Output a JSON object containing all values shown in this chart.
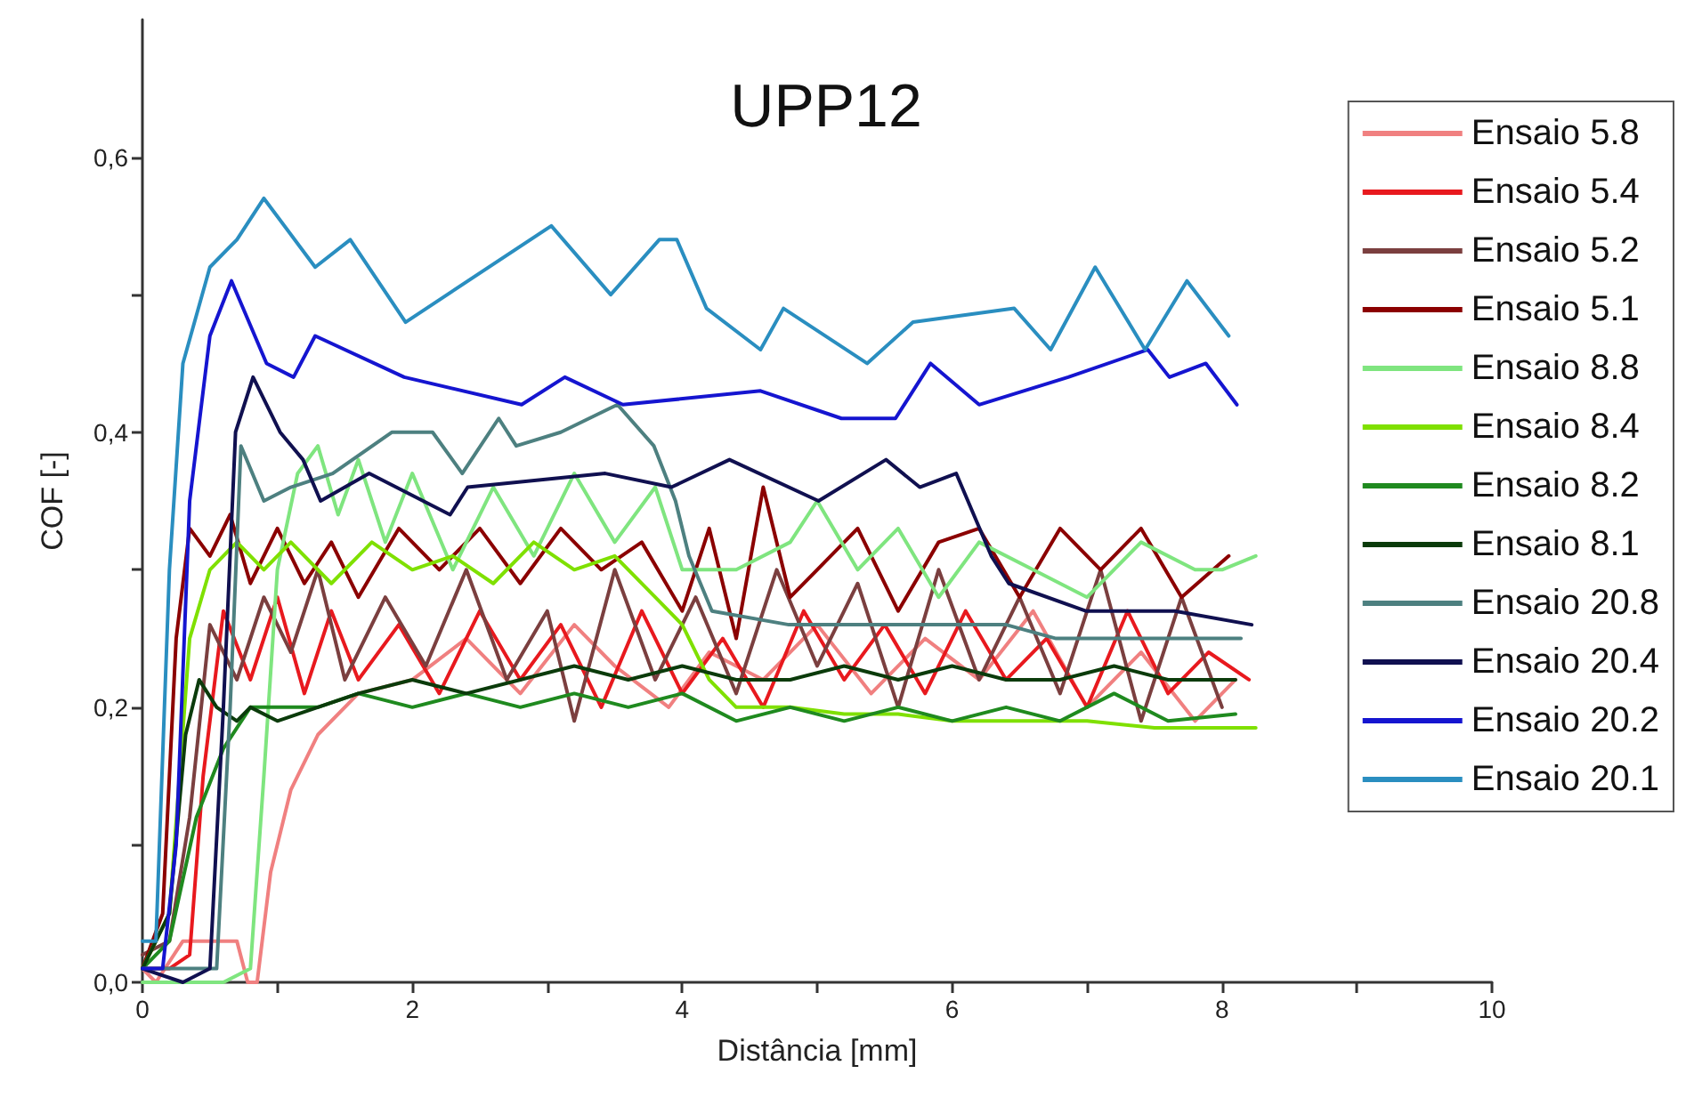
{
  "chart_data": {
    "type": "line",
    "title": "UPP12",
    "xlabel": "Distância [mm]",
    "ylabel": "COF [-]",
    "xlim": [
      0,
      10
    ],
    "xticks": [
      0,
      {
        "value": 1,
        "label": null
      },
      2,
      {
        "value": 3,
        "label": null
      },
      4,
      {
        "value": 5,
        "label": null
      },
      6,
      {
        "value": 7,
        "label": null
      },
      8,
      {
        "value": 9,
        "label": null
      },
      10
    ],
    "ylim": [
      0,
      0.7
    ],
    "yticks": [
      {
        "value": 0,
        "label": "0,0"
      },
      {
        "value": 0.1,
        "label": null
      },
      {
        "value": 0.2,
        "label": "0,2"
      },
      {
        "value": 0.3,
        "label": null
      },
      {
        "value": 0.4,
        "label": "0,4"
      },
      {
        "value": 0.5,
        "label": null
      },
      {
        "value": 0.6,
        "label": "0,6"
      }
    ],
    "grid": false,
    "legend": "top right",
    "marker": "none",
    "line_style": "solid",
    "series": [
      {
        "name": "Ensaio 5.8",
        "color": "#f08080",
        "x": [
          0,
          0.1,
          0.3,
          0.5,
          0.7,
          0.78,
          0.85,
          0.95,
          1.1,
          1.3,
          1.6,
          2.0,
          2.4,
          2.8,
          3.2,
          3.5,
          3.9,
          4.2,
          4.6,
          5.0,
          5.4,
          5.8,
          6.2,
          6.6,
          7.0,
          7.4,
          7.8,
          8.1
        ],
        "values": [
          0.01,
          0.0,
          0.03,
          0.03,
          0.03,
          0.0,
          0.0,
          0.08,
          0.14,
          0.18,
          0.21,
          0.22,
          0.25,
          0.21,
          0.26,
          0.23,
          0.2,
          0.24,
          0.22,
          0.26,
          0.21,
          0.25,
          0.22,
          0.27,
          0.2,
          0.24,
          0.19,
          0.22
        ]
      },
      {
        "name": "Ensaio 5.4",
        "color": "#e8191e",
        "x": [
          0,
          0.2,
          0.35,
          0.45,
          0.6,
          0.8,
          1.0,
          1.2,
          1.4,
          1.6,
          1.9,
          2.2,
          2.5,
          2.8,
          3.1,
          3.4,
          3.7,
          4.0,
          4.3,
          4.6,
          4.9,
          5.2,
          5.5,
          5.8,
          6.1,
          6.4,
          6.7,
          7.0,
          7.3,
          7.6,
          7.9,
          8.2
        ],
        "values": [
          0.01,
          0.01,
          0.02,
          0.15,
          0.27,
          0.22,
          0.28,
          0.21,
          0.27,
          0.22,
          0.26,
          0.21,
          0.27,
          0.22,
          0.26,
          0.2,
          0.27,
          0.21,
          0.25,
          0.2,
          0.27,
          0.22,
          0.26,
          0.21,
          0.27,
          0.22,
          0.25,
          0.2,
          0.27,
          0.21,
          0.24,
          0.22
        ]
      },
      {
        "name": "Ensaio 5.2",
        "color": "#7b3f3f",
        "x": [
          0,
          0.2,
          0.35,
          0.5,
          0.7,
          0.9,
          1.1,
          1.3,
          1.5,
          1.8,
          2.1,
          2.4,
          2.7,
          3.0,
          3.2,
          3.5,
          3.8,
          4.1,
          4.4,
          4.7,
          5.0,
          5.3,
          5.6,
          5.9,
          6.2,
          6.5,
          6.8,
          7.1,
          7.4,
          7.7,
          8.0
        ],
        "values": [
          0.02,
          0.03,
          0.12,
          0.26,
          0.22,
          0.28,
          0.24,
          0.3,
          0.22,
          0.28,
          0.23,
          0.3,
          0.22,
          0.27,
          0.19,
          0.3,
          0.22,
          0.28,
          0.21,
          0.3,
          0.23,
          0.29,
          0.2,
          0.3,
          0.22,
          0.28,
          0.21,
          0.3,
          0.19,
          0.28,
          0.2
        ]
      },
      {
        "name": "Ensaio 5.1",
        "color": "#8b0000",
        "x": [
          0,
          0.15,
          0.25,
          0.35,
          0.5,
          0.65,
          0.8,
          1.0,
          1.2,
          1.4,
          1.6,
          1.9,
          2.2,
          2.5,
          2.8,
          3.1,
          3.4,
          3.7,
          4.0,
          4.2,
          4.4,
          4.6,
          4.8,
          5.0,
          5.3,
          5.6,
          5.9,
          6.2,
          6.5,
          6.8,
          7.1,
          7.4,
          7.7,
          8.05
        ],
        "values": [
          0.01,
          0.05,
          0.25,
          0.33,
          0.31,
          0.34,
          0.29,
          0.33,
          0.29,
          0.32,
          0.28,
          0.33,
          0.3,
          0.33,
          0.29,
          0.33,
          0.3,
          0.32,
          0.27,
          0.33,
          0.25,
          0.36,
          0.28,
          0.3,
          0.33,
          0.27,
          0.32,
          0.33,
          0.28,
          0.33,
          0.3,
          0.33,
          0.28,
          0.31
        ]
      },
      {
        "name": "Ensaio 8.8",
        "color": "#7fe57f",
        "x": [
          0,
          0.3,
          0.6,
          0.8,
          0.9,
          1.0,
          1.15,
          1.3,
          1.45,
          1.6,
          1.8,
          2.0,
          2.3,
          2.6,
          2.9,
          3.2,
          3.5,
          3.8,
          4.0,
          4.4,
          4.8,
          5.0,
          5.3,
          5.6,
          5.9,
          6.2,
          6.6,
          7.0,
          7.4,
          7.8,
          8.0,
          8.25
        ],
        "values": [
          0,
          0,
          0,
          0.01,
          0.15,
          0.3,
          0.37,
          0.39,
          0.34,
          0.38,
          0.32,
          0.37,
          0.3,
          0.36,
          0.31,
          0.37,
          0.32,
          0.36,
          0.3,
          0.3,
          0.32,
          0.35,
          0.3,
          0.33,
          0.28,
          0.32,
          0.3,
          0.28,
          0.32,
          0.3,
          0.3,
          0.31
        ]
      },
      {
        "name": "Ensaio 8.4",
        "color": "#7fe000",
        "x": [
          0,
          0.2,
          0.35,
          0.5,
          0.7,
          0.9,
          1.1,
          1.4,
          1.7,
          2.0,
          2.3,
          2.6,
          2.9,
          3.2,
          3.5,
          3.8,
          4.0,
          4.2,
          4.4,
          4.8,
          5.2,
          5.6,
          6.0,
          6.5,
          7.0,
          7.5,
          8.0,
          8.25
        ],
        "values": [
          0.01,
          0.05,
          0.25,
          0.3,
          0.32,
          0.3,
          0.32,
          0.29,
          0.32,
          0.3,
          0.31,
          0.29,
          0.32,
          0.3,
          0.31,
          0.28,
          0.26,
          0.22,
          0.2,
          0.2,
          0.195,
          0.195,
          0.19,
          0.19,
          0.19,
          0.185,
          0.185,
          0.185
        ]
      },
      {
        "name": "Ensaio 8.2",
        "color": "#1f8a1f",
        "x": [
          0,
          0.2,
          0.4,
          0.6,
          0.8,
          1.0,
          1.3,
          1.6,
          2.0,
          2.4,
          2.8,
          3.2,
          3.6,
          4.0,
          4.4,
          4.8,
          5.2,
          5.6,
          6.0,
          6.4,
          6.8,
          7.2,
          7.6,
          8.1
        ],
        "values": [
          0.01,
          0.03,
          0.12,
          0.17,
          0.2,
          0.2,
          0.2,
          0.21,
          0.2,
          0.21,
          0.2,
          0.21,
          0.2,
          0.21,
          0.19,
          0.2,
          0.19,
          0.2,
          0.19,
          0.2,
          0.19,
          0.21,
          0.19,
          0.195
        ]
      },
      {
        "name": "Ensaio 8.1",
        "color": "#0b3b0b",
        "x": [
          0,
          0.2,
          0.32,
          0.42,
          0.55,
          0.7,
          0.8,
          1.0,
          1.3,
          1.6,
          2.0,
          2.4,
          2.8,
          3.2,
          3.6,
          4.0,
          4.4,
          4.8,
          5.2,
          5.6,
          6.0,
          6.4,
          6.8,
          7.2,
          7.6,
          8.1
        ],
        "values": [
          0.01,
          0.05,
          0.18,
          0.22,
          0.2,
          0.19,
          0.2,
          0.19,
          0.2,
          0.21,
          0.22,
          0.21,
          0.22,
          0.23,
          0.22,
          0.23,
          0.22,
          0.22,
          0.23,
          0.22,
          0.23,
          0.22,
          0.22,
          0.23,
          0.22,
          0.22
        ]
      },
      {
        "name": "Ensaio 20.8",
        "color": "#4d8080",
        "x": [
          0,
          0.3,
          0.55,
          0.65,
          0.73,
          0.9,
          1.1,
          1.41,
          1.85,
          2.15,
          2.37,
          2.64,
          2.77,
          3.1,
          3.52,
          3.79,
          3.95,
          4.05,
          4.22,
          4.79,
          5.3,
          5.9,
          6.4,
          6.77,
          7.4,
          8.14
        ],
        "values": [
          0.01,
          0.01,
          0.01,
          0.2,
          0.39,
          0.35,
          0.36,
          0.37,
          0.4,
          0.4,
          0.37,
          0.41,
          0.39,
          0.4,
          0.42,
          0.39,
          0.35,
          0.31,
          0.27,
          0.26,
          0.26,
          0.26,
          0.26,
          0.25,
          0.25,
          0.25
        ]
      },
      {
        "name": "Ensaio 20.4",
        "color": "#101050",
        "x": [
          0,
          0.3,
          0.5,
          0.6,
          0.69,
          0.82,
          1.02,
          1.19,
          1.32,
          1.68,
          2.28,
          2.41,
          3.43,
          3.92,
          4.35,
          5.01,
          5.51,
          5.76,
          6.03,
          6.29,
          6.42,
          6.99,
          7.65,
          8.22
        ],
        "values": [
          0.01,
          0.0,
          0.01,
          0.2,
          0.4,
          0.44,
          0.4,
          0.38,
          0.35,
          0.37,
          0.34,
          0.36,
          0.37,
          0.36,
          0.38,
          0.35,
          0.38,
          0.36,
          0.37,
          0.31,
          0.29,
          0.27,
          0.27,
          0.26
        ]
      },
      {
        "name": "Ensaio 20.2",
        "color": "#1515d0",
        "x": [
          0,
          0.15,
          0.25,
          0.35,
          0.5,
          0.66,
          0.92,
          1.12,
          1.28,
          1.94,
          2.81,
          3.13,
          3.56,
          4.58,
          5.18,
          5.58,
          5.84,
          6.2,
          6.86,
          7.45,
          7.61,
          7.88,
          8.11
        ],
        "values": [
          0.01,
          0.01,
          0.1,
          0.35,
          0.47,
          0.51,
          0.45,
          0.44,
          0.47,
          0.44,
          0.42,
          0.44,
          0.42,
          0.43,
          0.41,
          0.41,
          0.45,
          0.42,
          0.44,
          0.46,
          0.44,
          0.45,
          0.42
        ]
      },
      {
        "name": "Ensaio 20.1",
        "color": "#2a8ec0",
        "x": [
          0,
          0.1,
          0.2,
          0.3,
          0.5,
          0.7,
          0.9,
          1.28,
          1.54,
          1.95,
          3.03,
          3.47,
          3.83,
          3.96,
          4.18,
          4.58,
          4.75,
          5.37,
          5.71,
          6.46,
          6.73,
          7.06,
          7.43,
          7.74,
          8.05
        ],
        "values": [
          0.03,
          0.03,
          0.3,
          0.45,
          0.52,
          0.54,
          0.57,
          0.52,
          0.54,
          0.48,
          0.55,
          0.5,
          0.54,
          0.54,
          0.49,
          0.46,
          0.49,
          0.45,
          0.48,
          0.49,
          0.46,
          0.52,
          0.46,
          0.51,
          0.47
        ]
      }
    ]
  }
}
